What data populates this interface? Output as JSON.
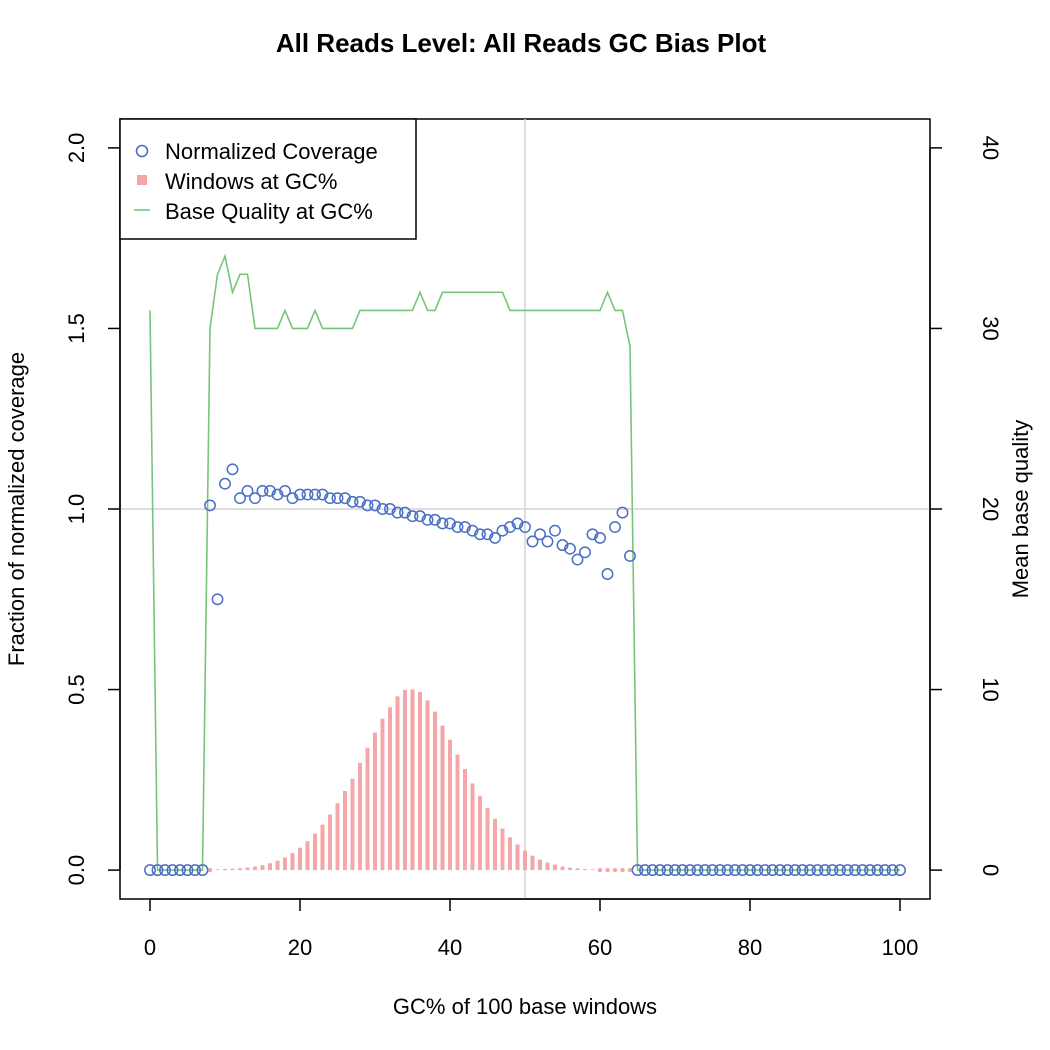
{
  "chart_data": {
    "type": "scatter",
    "title": "All Reads Level: All Reads GC Bias Plot",
    "xlabel": "GC% of 100 base windows",
    "ylabel": "Fraction of normalized coverage",
    "y2label": "Mean base quality",
    "xlim": [
      -4,
      104
    ],
    "ylim": [
      -0.08,
      2.08
    ],
    "y2lim": [
      -1.6,
      41.6
    ],
    "x_ticks": [
      "0",
      "20",
      "40",
      "60",
      "80",
      "100"
    ],
    "y_ticks": [
      "0.0",
      "0.5",
      "1.0",
      "1.5",
      "2.0"
    ],
    "y2_ticks": [
      "0",
      "10",
      "20",
      "30",
      "40"
    ],
    "reference_lines": {
      "x": 50,
      "y": 1.0
    },
    "legend": {
      "position": "top-left",
      "entries": [
        "Normalized Coverage",
        "Windows at GC%",
        "Base Quality at GC%"
      ]
    },
    "colors": {
      "coverage": "#4a6fc4",
      "windows": "#f4a6a8",
      "quality": "#77c677",
      "reference": "#d3d3d3"
    },
    "x": [
      0,
      1,
      2,
      3,
      4,
      5,
      6,
      7,
      8,
      9,
      10,
      11,
      12,
      13,
      14,
      15,
      16,
      17,
      18,
      19,
      20,
      21,
      22,
      23,
      24,
      25,
      26,
      27,
      28,
      29,
      30,
      31,
      32,
      33,
      34,
      35,
      36,
      37,
      38,
      39,
      40,
      41,
      42,
      43,
      44,
      45,
      46,
      47,
      48,
      49,
      50,
      51,
      52,
      53,
      54,
      55,
      56,
      57,
      58,
      59,
      60,
      61,
      62,
      63,
      64,
      65,
      66,
      67,
      68,
      69,
      70,
      71,
      72,
      73,
      74,
      75,
      76,
      77,
      78,
      79,
      80,
      81,
      82,
      83,
      84,
      85,
      86,
      87,
      88,
      89,
      90,
      91,
      92,
      93,
      94,
      95,
      96,
      97,
      98,
      99,
      100
    ],
    "series": [
      {
        "name": "Normalized Coverage",
        "axis": "left",
        "values": [
          0,
          0,
          0,
          0,
          0,
          0,
          0,
          0,
          1.01,
          0.75,
          1.07,
          1.11,
          1.03,
          1.05,
          1.03,
          1.05,
          1.05,
          1.04,
          1.05,
          1.03,
          1.04,
          1.04,
          1.04,
          1.04,
          1.03,
          1.03,
          1.03,
          1.02,
          1.02,
          1.01,
          1.01,
          1.0,
          1.0,
          0.99,
          0.99,
          0.98,
          0.98,
          0.97,
          0.97,
          0.96,
          0.96,
          0.95,
          0.95,
          0.94,
          0.93,
          0.93,
          0.92,
          0.94,
          0.95,
          0.96,
          0.95,
          0.91,
          0.93,
          0.91,
          0.94,
          0.9,
          0.89,
          0.86,
          0.88,
          0.93,
          0.92,
          0.82,
          0.95,
          0.99,
          0.87,
          0,
          0,
          0,
          0,
          0,
          0,
          0,
          0,
          0,
          0,
          0,
          0,
          0,
          0,
          0,
          0,
          0,
          0,
          0,
          0,
          0,
          0,
          0,
          0,
          0,
          0,
          0,
          0,
          0,
          0,
          0,
          0,
          0,
          0,
          0,
          0
        ]
      },
      {
        "name": "Windows at GC%",
        "axis": "left",
        "values": [
          0,
          0,
          0,
          0,
          0,
          0,
          0,
          0,
          0.001,
          0.002,
          0.003,
          0.004,
          0.005,
          0.007,
          0.01,
          0.014,
          0.019,
          0.026,
          0.035,
          0.047,
          0.062,
          0.08,
          0.101,
          0.126,
          0.154,
          0.185,
          0.219,
          0.253,
          0.297,
          0.339,
          0.381,
          0.419,
          0.451,
          0.481,
          0.499,
          0.5,
          0.493,
          0.47,
          0.439,
          0.4,
          0.361,
          0.32,
          0.28,
          0.24,
          0.205,
          0.172,
          0.142,
          0.115,
          0.091,
          0.071,
          0.054,
          0.04,
          0.029,
          0.021,
          0.015,
          0.01,
          0.007,
          0.005,
          0.003,
          0.002,
          0.001,
          0.001,
          0.001,
          0.0005,
          0.0003,
          0,
          0,
          0,
          0,
          0,
          0,
          0,
          0,
          0,
          0,
          0,
          0,
          0,
          0,
          0,
          0,
          0,
          0,
          0,
          0,
          0,
          0,
          0,
          0,
          0,
          0,
          0,
          0,
          0,
          0,
          0,
          0,
          0,
          0,
          0,
          0
        ]
      },
      {
        "name": "Base Quality at GC%",
        "axis": "right",
        "values": [
          31,
          0,
          0,
          0,
          0,
          0,
          0,
          0,
          30,
          33,
          34,
          32,
          33,
          33,
          30,
          30,
          30,
          30,
          31,
          30,
          30,
          30,
          31,
          30,
          30,
          30,
          30,
          30,
          31,
          31,
          31,
          31,
          31,
          31,
          31,
          31,
          32,
          31,
          31,
          32,
          32,
          32,
          32,
          32,
          32,
          32,
          32,
          32,
          31,
          31,
          31,
          31,
          31,
          31,
          31,
          31,
          31,
          31,
          31,
          31,
          31,
          32,
          31,
          31,
          29,
          0,
          0,
          0,
          0,
          0,
          0,
          0,
          0,
          0,
          0,
          0,
          0,
          0,
          0,
          0,
          0,
          0,
          0,
          0,
          0,
          0,
          0,
          0,
          0,
          0,
          0,
          0,
          0,
          0,
          0,
          0,
          0,
          0,
          0,
          0,
          0
        ]
      }
    ]
  }
}
